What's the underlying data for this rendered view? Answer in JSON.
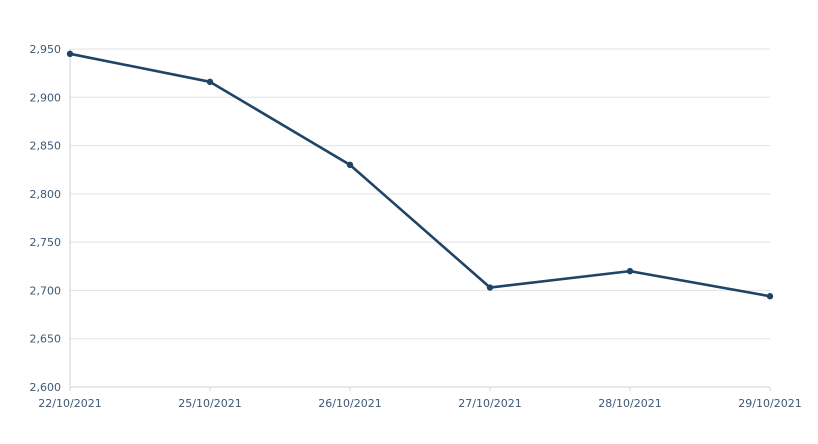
{
  "chart_data": {
    "type": "line",
    "title": "",
    "xlabel": "",
    "ylabel": "",
    "x": [
      "22/10/2021",
      "25/10/2021",
      "26/10/2021",
      "27/10/2021",
      "28/10/2021",
      "29/10/2021"
    ],
    "series": [
      {
        "values": [
          2945,
          2916,
          2830,
          2703,
          2720,
          2694
        ],
        "color": "#1f4466"
      }
    ],
    "y_ticks": [
      2600,
      2650,
      2700,
      2750,
      2800,
      2850,
      2900,
      2950
    ],
    "y_tick_labels": [
      "2,600",
      "2,650",
      "2,700",
      "2,750",
      "2,800",
      "2,850",
      "2,900",
      "2,950"
    ],
    "ylim": [
      2600,
      2950
    ],
    "grid": "horizontal",
    "legend": "none"
  }
}
